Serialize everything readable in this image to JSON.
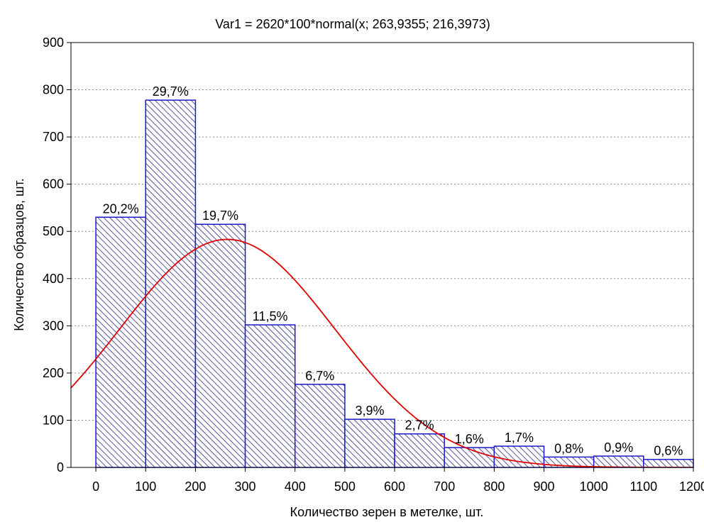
{
  "chart_data": {
    "type": "bar",
    "title": "Var1 = 2620*100*normal(x; 263,9355; 216,3973)",
    "xlabel": "Количество зерен в метелке, шт.",
    "ylabel": "Количество образцов, шт.",
    "xlim": [
      -50,
      1200
    ],
    "ylim": [
      0,
      900
    ],
    "xticks": [
      0,
      100,
      200,
      300,
      400,
      500,
      600,
      700,
      800,
      900,
      1000,
      1100,
      1200
    ],
    "yticks": [
      0,
      100,
      200,
      300,
      400,
      500,
      600,
      700,
      800,
      900
    ],
    "grid": true,
    "bins": [
      {
        "start": 0,
        "end": 100,
        "value": 530,
        "label": "20,2%"
      },
      {
        "start": 100,
        "end": 200,
        "value": 778,
        "label": "29,7%"
      },
      {
        "start": 200,
        "end": 300,
        "value": 515,
        "label": "19,7%"
      },
      {
        "start": 300,
        "end": 400,
        "value": 302,
        "label": "11,5%"
      },
      {
        "start": 400,
        "end": 500,
        "value": 176,
        "label": "6,7%"
      },
      {
        "start": 500,
        "end": 600,
        "value": 102,
        "label": "3,9%"
      },
      {
        "start": 600,
        "end": 700,
        "value": 71,
        "label": "2,7%"
      },
      {
        "start": 700,
        "end": 800,
        "value": 42,
        "label": "1,6%"
      },
      {
        "start": 800,
        "end": 900,
        "value": 45,
        "label": "1,7%"
      },
      {
        "start": 900,
        "end": 1000,
        "value": 22,
        "label": "0,8%"
      },
      {
        "start": 1000,
        "end": 1100,
        "value": 24,
        "label": "0,9%"
      },
      {
        "start": 1100,
        "end": 1200,
        "value": 17,
        "label": "0,6%"
      }
    ],
    "fit_curve": {
      "type": "normal",
      "scale": 262000,
      "mean": 263.9355,
      "sd": 216.3973,
      "x_range": [
        -50,
        1200
      ]
    },
    "colors": {
      "bar_edge": "#1a1acc",
      "bar_hatch": "#2a2a8c",
      "curve": "#e00000",
      "grid": "#8c8c8c",
      "axis": "#000000"
    }
  }
}
